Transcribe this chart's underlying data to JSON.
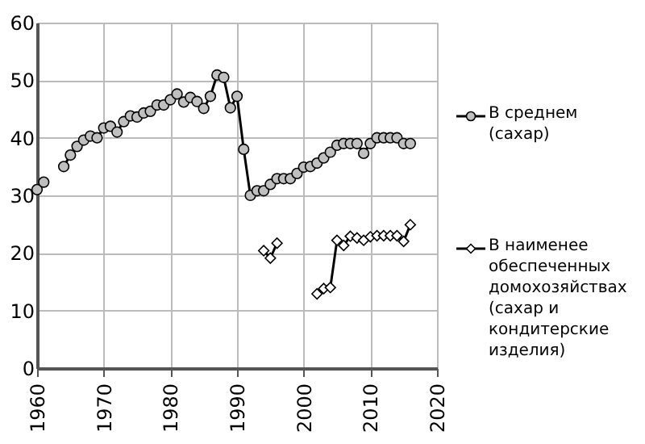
{
  "chart_data": {
    "type": "line",
    "x": [
      1960,
      1961,
      1962,
      1963,
      1964,
      1965,
      1966,
      1967,
      1968,
      1969,
      1970,
      1971,
      1972,
      1973,
      1974,
      1975,
      1976,
      1977,
      1978,
      1979,
      1980,
      1981,
      1982,
      1983,
      1984,
      1985,
      1986,
      1987,
      1988,
      1989,
      1990,
      1991,
      1992,
      1993,
      1994,
      1995,
      1996,
      1997,
      1998,
      1999,
      2000,
      2001,
      2002,
      2003,
      2004,
      2005,
      2006,
      2007,
      2008,
      2009,
      2010,
      2011,
      2012,
      2013,
      2014,
      2015,
      2016
    ],
    "series": [
      {
        "name": "В среднем (сахар)",
        "color": "#bfbfbf",
        "marker": "circle",
        "values": [
          31,
          32.3,
          null,
          null,
          35,
          37,
          38.5,
          39.6,
          40.3,
          40,
          41.7,
          42,
          41,
          42.8,
          43.8,
          43.6,
          44.3,
          44.6,
          45.7,
          45.7,
          46.6,
          47.6,
          46.2,
          47,
          46.3,
          45.1,
          47.2,
          50.9,
          50.5,
          45.2,
          47.2,
          38,
          30,
          30.8,
          30.8,
          31.9,
          32.9,
          32.9,
          32.9,
          33.8,
          34.9,
          35,
          35.6,
          36.5,
          37.5,
          38.7,
          39,
          39,
          39,
          37.3,
          39,
          40,
          40,
          40,
          40,
          39,
          39
        ]
      },
      {
        "name": "В наименее обеспеченных домохозяйствах (сахар и кондитерские изделия)",
        "color": "#ffffff",
        "marker": "diamond",
        "values": [
          null,
          null,
          null,
          null,
          null,
          null,
          null,
          null,
          null,
          null,
          null,
          null,
          null,
          null,
          null,
          null,
          null,
          null,
          null,
          null,
          null,
          null,
          null,
          null,
          null,
          null,
          null,
          null,
          null,
          null,
          null,
          null,
          null,
          null,
          20.4,
          19.1,
          21.7,
          null,
          null,
          null,
          null,
          null,
          12.9,
          13.8,
          14,
          22.2,
          21.3,
          22.9,
          22.6,
          22.2,
          22.8,
          23,
          23,
          23,
          23,
          22,
          24.9
        ]
      }
    ],
    "xlim": [
      1960,
      2020
    ],
    "xticks": [
      1960,
      1970,
      1980,
      1990,
      2000,
      2010,
      2020
    ],
    "ylim": [
      0,
      60
    ],
    "yticks": [
      0,
      10,
      20,
      30,
      40,
      50,
      60
    ],
    "grid": true,
    "legend": "right",
    "line_style": "solid"
  }
}
